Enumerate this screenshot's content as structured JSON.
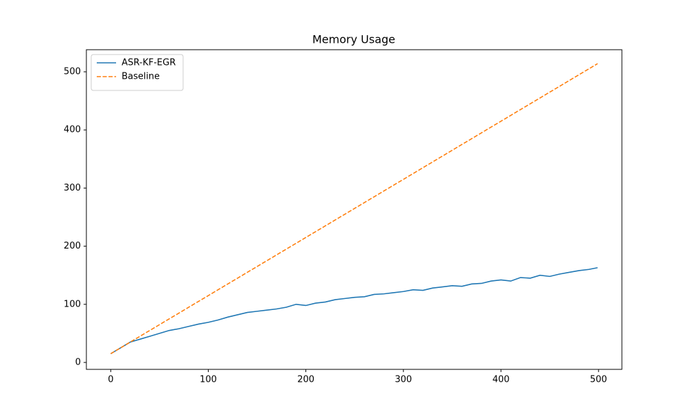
{
  "chart_data": {
    "type": "line",
    "title": "Memory Usage",
    "x": [
      0,
      10,
      20,
      30,
      40,
      50,
      60,
      70,
      80,
      90,
      100,
      110,
      120,
      130,
      140,
      150,
      160,
      170,
      180,
      190,
      200,
      210,
      220,
      230,
      240,
      250,
      260,
      270,
      280,
      290,
      300,
      310,
      320,
      330,
      340,
      350,
      360,
      370,
      380,
      390,
      400,
      410,
      420,
      430,
      440,
      450,
      460,
      470,
      480,
      490,
      499
    ],
    "series": [
      {
        "name": "ASR-KF-EGR",
        "color": "#1f77b4",
        "dash": "solid",
        "values": [
          15,
          25,
          35,
          40,
          45,
          50,
          55,
          58,
          62,
          66,
          69,
          73,
          78,
          82,
          86,
          88,
          90,
          92,
          95,
          100,
          98,
          102,
          104,
          108,
          110,
          112,
          113,
          117,
          118,
          120,
          122,
          125,
          124,
          128,
          130,
          132,
          131,
          135,
          136,
          140,
          142,
          140,
          146,
          145,
          150,
          148,
          152,
          155,
          158,
          160,
          163
        ]
      },
      {
        "name": "Baseline",
        "color": "#ff7f0e",
        "dash": "dashed",
        "values": [
          15,
          25,
          35,
          45,
          55,
          65,
          75,
          85,
          95,
          105,
          115,
          125,
          135,
          145,
          155,
          165,
          175,
          185,
          195,
          205,
          215,
          225,
          235,
          245,
          255,
          265,
          275,
          285,
          295,
          305,
          315,
          325,
          335,
          345,
          355,
          365,
          375,
          385,
          395,
          405,
          415,
          425,
          435,
          445,
          455,
          465,
          475,
          485,
          495,
          505,
          514
        ]
      }
    ],
    "xlim": [
      -24.95,
      523.95
    ],
    "ylim": [
      -11.9,
      538
    ],
    "xticks": [
      0,
      100,
      200,
      300,
      400,
      500
    ],
    "yticks": [
      0,
      100,
      200,
      300,
      400,
      500
    ],
    "grid": false,
    "legend": "upper-left"
  }
}
